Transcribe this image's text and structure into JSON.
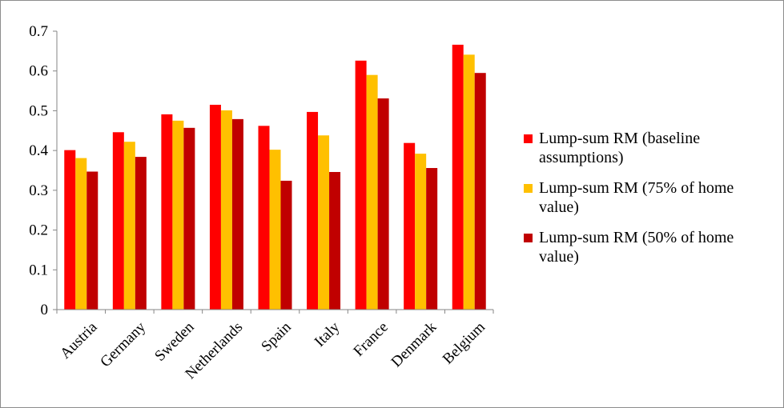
{
  "chart_data": {
    "type": "bar",
    "title": "",
    "xlabel": "",
    "ylabel": "",
    "ylim": [
      0,
      0.7
    ],
    "yticks": [
      0,
      0.1,
      0.2,
      0.3,
      0.4,
      0.5,
      0.6,
      0.7
    ],
    "ytick_labels": [
      "0",
      "0.1",
      "0.2",
      "0.3",
      "0.4",
      "0.5",
      "0.6",
      "0.7"
    ],
    "grid": false,
    "legend_position": "right",
    "categories": [
      "Austria",
      "Germany",
      "Sweden",
      "Netherlands",
      "Spain",
      "Italy",
      "France",
      "Denmark",
      "Belgium"
    ],
    "series": [
      {
        "name": "Lump-sum RM  (baseline assumptions)",
        "color": "#ff0000",
        "values": [
          0.401,
          0.446,
          0.491,
          0.515,
          0.462,
          0.497,
          0.626,
          0.419,
          0.666
        ]
      },
      {
        "name": "Lump-sum RM (75% of home value)",
        "color": "#ffc000",
        "values": [
          0.381,
          0.422,
          0.475,
          0.501,
          0.402,
          0.438,
          0.59,
          0.392,
          0.641
        ]
      },
      {
        "name": "Lump-sum RM  (50% of home value)",
        "color": "#c00000",
        "values": [
          0.347,
          0.384,
          0.457,
          0.479,
          0.324,
          0.346,
          0.531,
          0.356,
          0.595
        ]
      }
    ]
  }
}
